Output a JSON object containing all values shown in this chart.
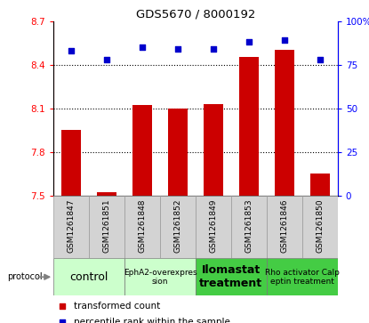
{
  "title": "GDS5670 / 8000192",
  "samples": [
    "GSM1261847",
    "GSM1261851",
    "GSM1261848",
    "GSM1261852",
    "GSM1261849",
    "GSM1261853",
    "GSM1261846",
    "GSM1261850"
  ],
  "bar_values": [
    7.95,
    7.52,
    8.12,
    8.1,
    8.13,
    8.45,
    8.5,
    7.65
  ],
  "dot_values": [
    83,
    78,
    85,
    84,
    84,
    88,
    89,
    78
  ],
  "ylim_left": [
    7.5,
    8.7
  ],
  "ylim_right": [
    0,
    100
  ],
  "yticks_left": [
    7.5,
    7.8,
    8.1,
    8.4,
    8.7
  ],
  "yticks_right": [
    0,
    25,
    50,
    75,
    100
  ],
  "bar_color": "#cc0000",
  "dot_color": "#0000cc",
  "proto_groups": [
    {
      "label": "control",
      "cols": [
        0,
        1
      ],
      "color": "#ccffcc",
      "fontsize": 9,
      "bold": false
    },
    {
      "label": "EphA2-overexpres\nsion",
      "cols": [
        2,
        3
      ],
      "color": "#ccffcc",
      "fontsize": 6.5,
      "bold": false
    },
    {
      "label": "Ilomastat\ntreatment",
      "cols": [
        4,
        5
      ],
      "color": "#44cc44",
      "fontsize": 9,
      "bold": true
    },
    {
      "label": "Rho activator Calp\neptin treatment",
      "cols": [
        6,
        7
      ],
      "color": "#44cc44",
      "fontsize": 6.5,
      "bold": false
    }
  ],
  "legend_bar_label": "transformed count",
  "legend_dot_label": "percentile rank within the sample",
  "protocol_label": "protocol"
}
